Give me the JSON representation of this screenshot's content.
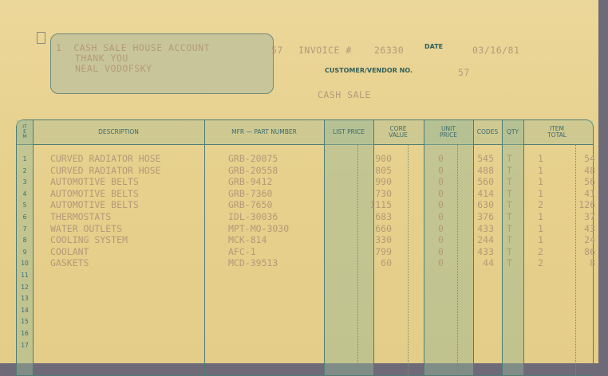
{
  "header": {
    "address_lines": [
      "1  CASH SALE HOUSE ACCOUNT",
      "THANK YOU",
      "NEAL VODOFSKY"
    ],
    "customer_prefix": "57",
    "invoice_label": "INVOICE #",
    "invoice_number": "26330",
    "date_label": "DATE",
    "date_value": "03/16/81",
    "customer_vendor_label": "CUSTOMER/VENDOR NO.",
    "customer_vendor_no": "57",
    "sale_type": "CASH SALE"
  },
  "table": {
    "columns": {
      "item": "ITEM",
      "description": "DESCRIPTION",
      "mfr_part": "MFR — PART NUMBER",
      "list_price": "LIST PRICE",
      "core_value": "CORE VALUE",
      "unit_price": "UNIT PRICE",
      "codes": "CODES",
      "qty": "QTY",
      "item_total": "ITEM TOTAL"
    },
    "row_numbers": [
      "1",
      "2",
      "3",
      "4",
      "5",
      "6",
      "7",
      "8",
      "9",
      "10",
      "11",
      "12",
      "13",
      "14",
      "15",
      "16",
      "17"
    ],
    "rows": [
      {
        "description": "CURVED RADIATOR HOSE",
        "part": "GRB-20875",
        "core": "900",
        "unit": "0",
        "codes": "545",
        "flag": "T",
        "qty": "1",
        "total": "54"
      },
      {
        "description": "CURVED RADIATOR HOSE",
        "part": "GRB-20558",
        "core": "805",
        "unit": "0",
        "codes": "488",
        "flag": "T",
        "qty": "1",
        "total": "48"
      },
      {
        "description": "AUTOMOTIVE BELTS",
        "part": "GRB-9412",
        "core": "990",
        "unit": "0",
        "codes": "560",
        "flag": "T",
        "qty": "1",
        "total": "56"
      },
      {
        "description": "AUTOMOTIVE BELTS",
        "part": "GRB-7360",
        "core": "730",
        "unit": "0",
        "codes": "414",
        "flag": "T",
        "qty": "1",
        "total": "41"
      },
      {
        "description": "AUTOMOTIVE BELTS",
        "part": "GRB-7650",
        "core": "1115",
        "unit": "0",
        "codes": "630",
        "flag": "T",
        "qty": "2",
        "total": "126"
      },
      {
        "description": "THERMOSTATS",
        "part": "IDL-30036",
        "core": "683",
        "unit": "0",
        "codes": "376",
        "flag": "T",
        "qty": "1",
        "total": "37"
      },
      {
        "description": "WATER OUTLETS",
        "part": "MPT-MO-3030",
        "core": "660",
        "unit": "0",
        "codes": "433",
        "flag": "T",
        "qty": "1",
        "total": "43"
      },
      {
        "description": "COOLING SYSTEM",
        "part": "MCK-814",
        "core": "330",
        "unit": "0",
        "codes": "244",
        "flag": "T",
        "qty": "1",
        "total": "24"
      },
      {
        "description": "COOLANT",
        "part": "AFC-1",
        "core": "799",
        "unit": "0",
        "codes": "433",
        "flag": "T",
        "qty": "2",
        "total": "86"
      },
      {
        "description": "GASKETS",
        "part": "MCD-39513",
        "core": "60",
        "unit": "0",
        "codes": "44",
        "flag": "T",
        "qty": "2",
        "total": "8"
      }
    ]
  }
}
